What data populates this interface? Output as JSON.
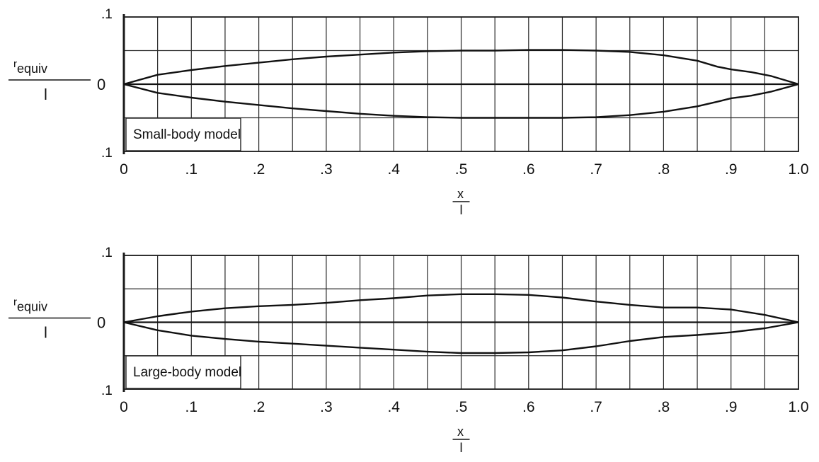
{
  "chart_data": [
    {
      "type": "line",
      "model_label": "Small-body model",
      "ylabel": "r",
      "ylabel_sub": "equiv",
      "ylabel_denominator": "l",
      "xlabel_numerator": "x",
      "xlabel_denominator": "l",
      "y_top_label": ".1",
      "y_zero_label": "0",
      "y_bottom_label": ".1",
      "x_tick_labels": [
        "0",
        ".1",
        ".2",
        ".3",
        ".4",
        ".5",
        ".6",
        ".7",
        ".8",
        ".9",
        "1.0"
      ],
      "xlim": [
        0,
        1.0
      ],
      "ylim": [
        -0.1,
        0.1
      ],
      "grid": true,
      "series": [
        {
          "x": [
            0,
            0.05,
            0.1,
            0.15,
            0.2,
            0.25,
            0.3,
            0.35,
            0.4,
            0.45,
            0.5,
            0.55,
            0.6,
            0.65,
            0.7,
            0.75,
            0.8,
            0.85,
            0.88,
            0.9,
            0.93,
            0.96,
            1.0
          ],
          "y": [
            0,
            0.014,
            0.021,
            0.027,
            0.032,
            0.037,
            0.041,
            0.044,
            0.047,
            0.049,
            0.05,
            0.05,
            0.051,
            0.051,
            0.05,
            0.048,
            0.043,
            0.035,
            0.026,
            0.022,
            0.018,
            0.012,
            0
          ]
        },
        {
          "x": [
            0,
            0.05,
            0.1,
            0.15,
            0.2,
            0.25,
            0.3,
            0.35,
            0.4,
            0.45,
            0.5,
            0.55,
            0.6,
            0.65,
            0.7,
            0.75,
            0.8,
            0.85,
            0.88,
            0.9,
            0.93,
            0.96,
            1.0
          ],
          "y": [
            0,
            -0.013,
            -0.02,
            -0.026,
            -0.031,
            -0.036,
            -0.04,
            -0.044,
            -0.047,
            -0.049,
            -0.05,
            -0.05,
            -0.05,
            -0.05,
            -0.049,
            -0.046,
            -0.041,
            -0.033,
            -0.026,
            -0.021,
            -0.017,
            -0.011,
            0
          ]
        }
      ]
    },
    {
      "type": "line",
      "model_label": "Large-body model",
      "ylabel": "r",
      "ylabel_sub": "equiv",
      "ylabel_denominator": "l",
      "xlabel_numerator": "x",
      "xlabel_denominator": "l",
      "y_top_label": ".1",
      "y_zero_label": "0",
      "y_bottom_label": ".1",
      "x_tick_labels": [
        "0",
        ".1",
        ".2",
        ".3",
        ".4",
        ".5",
        ".6",
        ".7",
        ".8",
        ".9",
        "1.0"
      ],
      "xlim": [
        0,
        1.0
      ],
      "ylim": [
        -0.1,
        0.1
      ],
      "grid": true,
      "series": [
        {
          "x": [
            0,
            0.05,
            0.1,
            0.15,
            0.2,
            0.25,
            0.3,
            0.35,
            0.4,
            0.45,
            0.5,
            0.55,
            0.6,
            0.65,
            0.7,
            0.75,
            0.8,
            0.85,
            0.9,
            0.95,
            1.0
          ],
          "y": [
            0,
            0.009,
            0.016,
            0.021,
            0.024,
            0.026,
            0.029,
            0.033,
            0.036,
            0.04,
            0.042,
            0.042,
            0.041,
            0.037,
            0.031,
            0.026,
            0.022,
            0.022,
            0.019,
            0.011,
            0
          ]
        },
        {
          "x": [
            0,
            0.05,
            0.1,
            0.15,
            0.2,
            0.25,
            0.3,
            0.35,
            0.4,
            0.45,
            0.5,
            0.55,
            0.6,
            0.65,
            0.7,
            0.75,
            0.8,
            0.85,
            0.9,
            0.95,
            1.0
          ],
          "y": [
            0,
            -0.012,
            -0.02,
            -0.025,
            -0.029,
            -0.032,
            -0.035,
            -0.038,
            -0.041,
            -0.044,
            -0.046,
            -0.046,
            -0.045,
            -0.042,
            -0.036,
            -0.028,
            -0.022,
            -0.019,
            -0.015,
            -0.009,
            0
          ]
        }
      ]
    }
  ]
}
